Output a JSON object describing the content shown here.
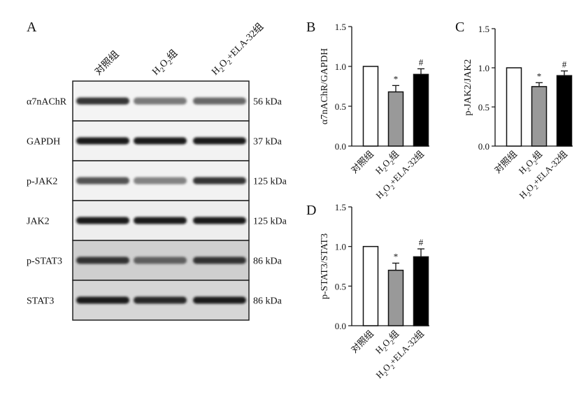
{
  "panel_labels": {
    "A": "A",
    "B": "B",
    "C": "C",
    "D": "D"
  },
  "blot": {
    "lane_labels": [
      "对照组",
      "H₂O₂组",
      "H₂O₂+ELA-32组"
    ],
    "rows": [
      {
        "protein": "α7nAChR",
        "size": "56 kDa",
        "intensity": [
          0.85,
          0.5,
          0.6
        ],
        "background": "#f4f4f4"
      },
      {
        "protein": "GAPDH",
        "size": "37 kDa",
        "intensity": [
          0.95,
          0.95,
          0.95
        ],
        "background": "#f2f2f2"
      },
      {
        "protein": "p-JAK2",
        "size": "125 kDa",
        "intensity": [
          0.7,
          0.45,
          0.85
        ],
        "background": "#f2f2f2"
      },
      {
        "protein": "JAK2",
        "size": "125 kDa",
        "intensity": [
          0.95,
          0.95,
          0.95
        ],
        "background": "#eeeeee"
      },
      {
        "protein": "p-STAT3",
        "size": "86 kDa",
        "intensity": [
          0.85,
          0.6,
          0.85
        ],
        "background": "#cfcfcf"
      },
      {
        "protein": "STAT3",
        "size": "86 kDa",
        "intensity": [
          0.95,
          0.9,
          0.95
        ],
        "background": "#d6d6d6"
      }
    ]
  },
  "chart_data": [
    {
      "panel": "B",
      "type": "bar",
      "categories": [
        "对照组",
        "H₂O₂组",
        "H₂O₂+ELA-32组"
      ],
      "values": [
        1.0,
        0.68,
        0.9
      ],
      "errors": [
        0,
        0.08,
        0.07
      ],
      "significance": [
        "",
        "*",
        "#"
      ],
      "bar_colors": [
        "#ffffff",
        "#999999",
        "#000000"
      ],
      "ylabel": "α7nAChR/GAPDH",
      "ylim": [
        0,
        1.5
      ],
      "yticks": [
        "0.0",
        "0.5",
        "1.0",
        "1.5"
      ]
    },
    {
      "panel": "C",
      "type": "bar",
      "categories": [
        "对照组",
        "H₂O₂组",
        "H₂O₂+ELA-32组"
      ],
      "values": [
        1.0,
        0.76,
        0.9
      ],
      "errors": [
        0,
        0.05,
        0.06
      ],
      "significance": [
        "",
        "*",
        "#"
      ],
      "bar_colors": [
        "#ffffff",
        "#999999",
        "#000000"
      ],
      "ylabel": "p-JAK2/JAK2",
      "ylim": [
        0,
        1.5
      ],
      "yticks": [
        "0.0",
        "0.5",
        "1.0",
        "1.5"
      ]
    },
    {
      "panel": "D",
      "type": "bar",
      "categories": [
        "对照组",
        "H₂O₂组",
        "H₂O₂+ELA-32组"
      ],
      "values": [
        1.0,
        0.7,
        0.87
      ],
      "errors": [
        0,
        0.09,
        0.1
      ],
      "significance": [
        "",
        "*",
        "#"
      ],
      "bar_colors": [
        "#ffffff",
        "#999999",
        "#000000"
      ],
      "ylabel": "p-STAT3/STAT3",
      "ylim": [
        0,
        1.5
      ],
      "yticks": [
        "0.0",
        "0.5",
        "1.0",
        "1.5"
      ]
    }
  ]
}
